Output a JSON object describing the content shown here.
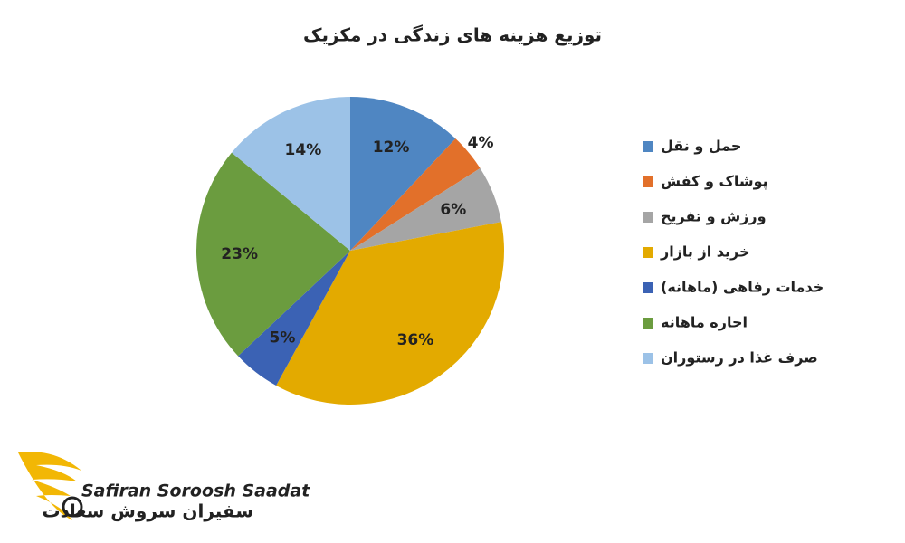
{
  "chart_data": {
    "type": "pie",
    "title": "توزیع هزینه های زندگی در مکزیک",
    "categories": [
      "حمل و نقل",
      "پوشاک و کفش",
      "ورزش و تفریح",
      "خرید از بازار",
      "خدمات رفاهی (ماهانه)",
      "اجاره ماهانه",
      "صرف غذا در رستوران"
    ],
    "values": [
      12,
      4,
      6,
      36,
      5,
      23,
      14
    ],
    "value_labels": [
      "12%",
      "4%",
      "6%",
      "36%",
      "5%",
      "23%",
      "14%"
    ],
    "colors": [
      "#4f86c2",
      "#e2702a",
      "#a5a5a5",
      "#e3aa00",
      "#3b62b4",
      "#6b9c3f",
      "#9cc2e7"
    ],
    "legend": "right"
  },
  "logo": {
    "name_en": "Safiran Soroosh Saadat",
    "name_fa": "سفیران سروش سعادت"
  }
}
